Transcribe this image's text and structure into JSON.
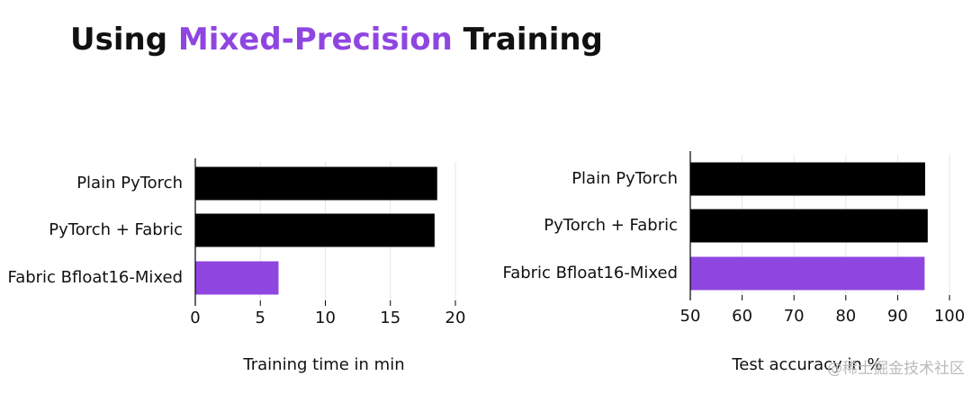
{
  "title": {
    "before": "Using",
    "highlight": "Mixed-Precision",
    "after": "Training"
  },
  "watermark": "@稀土掘金技术社区",
  "chart_data": [
    {
      "type": "barh",
      "categories": [
        "Plain PyTorch",
        "PyTorch + Fabric",
        "Fabric Bfloat16-Mixed"
      ],
      "values": [
        18.6,
        18.4,
        6.4
      ],
      "colors": [
        "#000000",
        "#000000",
        "#8f46e0"
      ],
      "xlabel": "Training time in min",
      "xlim": [
        0,
        20
      ],
      "xticks": [
        0,
        5,
        10,
        15,
        20
      ],
      "grid": true
    },
    {
      "type": "barh",
      "categories": [
        "Plain PyTorch",
        "PyTorch + Fabric",
        "Fabric Bfloat16-Mixed"
      ],
      "values": [
        95.3,
        95.8,
        95.2
      ],
      "colors": [
        "#000000",
        "#000000",
        "#8f46e0"
      ],
      "xlabel": "Test accuracy in %",
      "xlim": [
        50,
        100
      ],
      "xticks": [
        50,
        60,
        70,
        80,
        90,
        100
      ],
      "grid": true
    }
  ]
}
